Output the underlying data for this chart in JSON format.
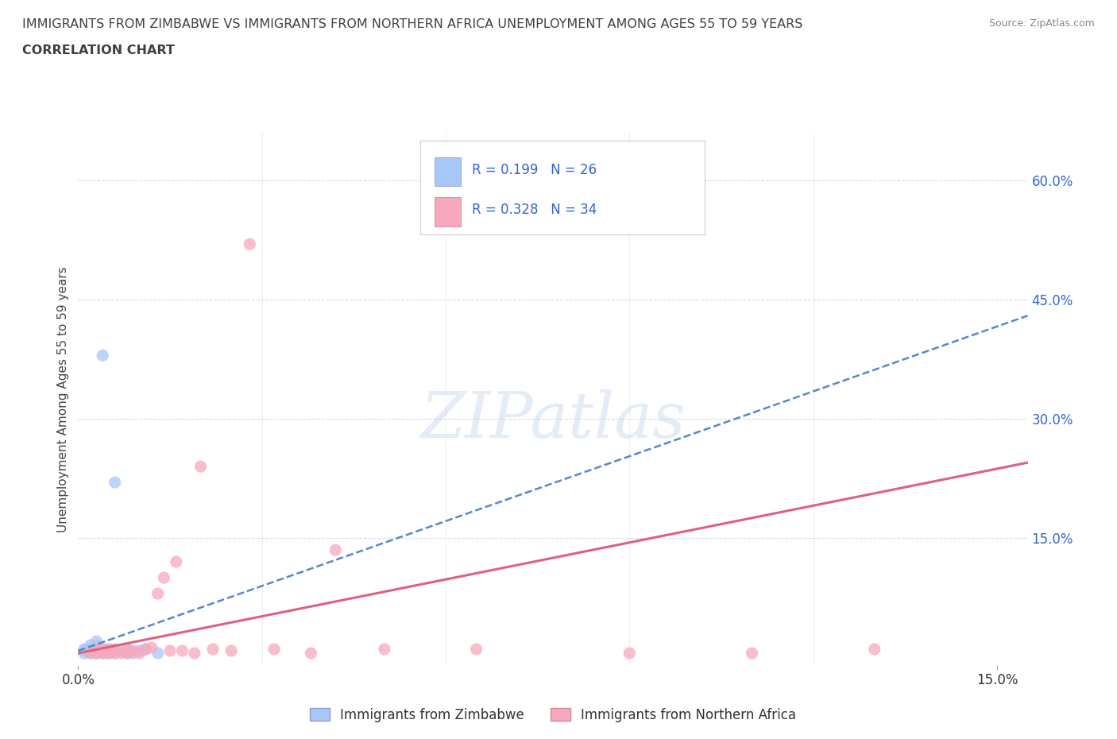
{
  "title_line1": "IMMIGRANTS FROM ZIMBABWE VS IMMIGRANTS FROM NORTHERN AFRICA UNEMPLOYMENT AMONG AGES 55 TO 59 YEARS",
  "title_line2": "CORRELATION CHART",
  "source": "Source: ZipAtlas.com",
  "ylabel": "Unemployment Among Ages 55 to 59 years",
  "xlim": [
    0.0,
    0.155
  ],
  "ylim": [
    -0.01,
    0.66
  ],
  "R1": 0.199,
  "N1": 26,
  "R2": 0.328,
  "N2": 34,
  "color_blue": "#a8c8f8",
  "color_pink": "#f8a8bc",
  "line_color_blue": "#5588cc",
  "line_color_pink": "#e06080",
  "background_color": "#ffffff",
  "grid_color": "#d8ddf0",
  "title_color": "#404040",
  "legend_label1": "Immigrants from Zimbabwe",
  "legend_label2": "Immigrants from Northern Africa",
  "zim_x": [
    0.001,
    0.001,
    0.001,
    0.002,
    0.002,
    0.002,
    0.002,
    0.003,
    0.003,
    0.003,
    0.003,
    0.003,
    0.004,
    0.004,
    0.004,
    0.005,
    0.005,
    0.006,
    0.006,
    0.007,
    0.008,
    0.008,
    0.009,
    0.01,
    0.011,
    0.013
  ],
  "zim_y": [
    0.005,
    0.008,
    0.01,
    0.005,
    0.008,
    0.01,
    0.015,
    0.005,
    0.008,
    0.01,
    0.015,
    0.02,
    0.005,
    0.01,
    0.38,
    0.005,
    0.01,
    0.005,
    0.22,
    0.008,
    0.005,
    0.01,
    0.005,
    0.008,
    0.01,
    0.005
  ],
  "na_x": [
    0.002,
    0.003,
    0.003,
    0.004,
    0.004,
    0.005,
    0.005,
    0.006,
    0.006,
    0.007,
    0.008,
    0.008,
    0.009,
    0.01,
    0.011,
    0.012,
    0.013,
    0.014,
    0.015,
    0.016,
    0.017,
    0.019,
    0.02,
    0.022,
    0.025,
    0.028,
    0.032,
    0.038,
    0.042,
    0.05,
    0.065,
    0.09,
    0.11,
    0.13
  ],
  "na_y": [
    0.005,
    0.005,
    0.01,
    0.005,
    0.01,
    0.005,
    0.01,
    0.005,
    0.01,
    0.005,
    0.005,
    0.01,
    0.008,
    0.005,
    0.01,
    0.012,
    0.08,
    0.1,
    0.008,
    0.12,
    0.008,
    0.005,
    0.24,
    0.01,
    0.008,
    0.52,
    0.01,
    0.005,
    0.135,
    0.01,
    0.01,
    0.005,
    0.005,
    0.01
  ]
}
